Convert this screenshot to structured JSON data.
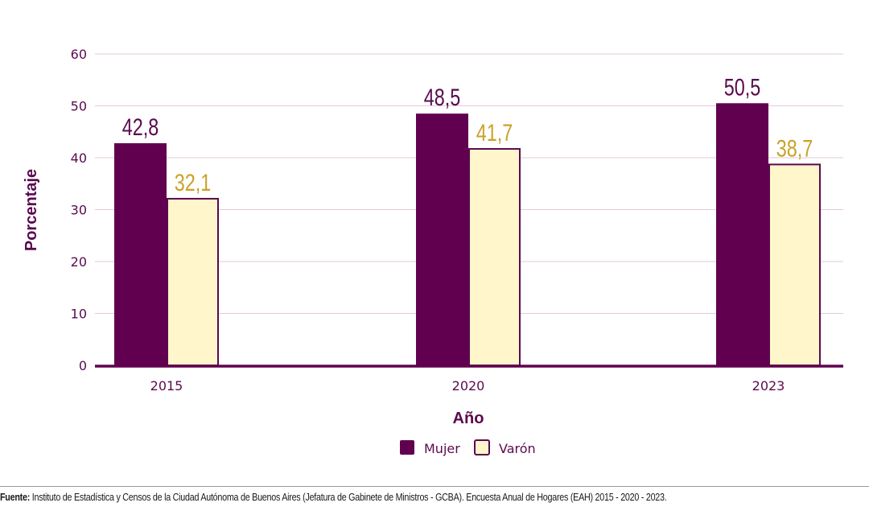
{
  "chart_data": {
    "type": "bar",
    "categories": [
      "2015",
      "2020",
      "2023"
    ],
    "series": [
      {
        "name": "Mujer",
        "values": [
          42.8,
          48.5,
          50.5
        ],
        "labels": [
          "42,8",
          "48,5",
          "50,5"
        ],
        "color": "#61004f"
      },
      {
        "name": "Varón",
        "values": [
          32.1,
          41.7,
          38.7
        ],
        "labels": [
          "32,1",
          "41,7",
          "38,7"
        ],
        "color": "#fff6cc"
      }
    ],
    "xlabel": "Año",
    "ylabel": "Porcentaje",
    "ylim": [
      0,
      60
    ],
    "yticks": [
      0,
      10,
      20,
      30,
      40,
      50,
      60
    ],
    "grid": true,
    "legend_position": "bottom",
    "colors": {
      "axis": "#61004f",
      "text": "#5a0a4e",
      "grid": "#e2c9dc",
      "varon_outline": "#5a0a4e",
      "varon_label": "#c9a227",
      "mujer_label": "#5a0a4e"
    }
  },
  "footer": {
    "source_label": "Fuente:",
    "source_text": " Instituto de Estadística y Censos de la Ciudad Autónoma de Buenos Aires (Jefatura de Gabinete de Ministros - GCBA). Encuesta Anual de Hogares (EAH) 2015 - 2020 - 2023."
  }
}
